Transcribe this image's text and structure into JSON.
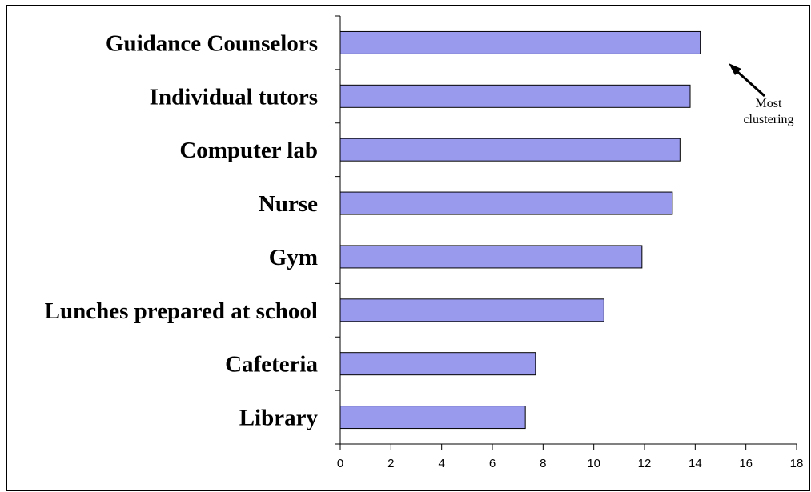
{
  "chart_data": {
    "type": "bar",
    "orientation": "horizontal",
    "categories": [
      "Guidance Counselors",
      "Individual tutors",
      "Computer lab",
      "Nurse",
      "Gym",
      "Lunches prepared at school",
      "Cafeteria",
      "Library"
    ],
    "values": [
      14.2,
      13.8,
      13.4,
      13.1,
      11.9,
      10.4,
      7.7,
      7.3
    ],
    "xlim": [
      0,
      18
    ],
    "xticks": [
      0,
      2,
      4,
      6,
      8,
      10,
      12,
      14,
      16,
      18
    ],
    "grid": false,
    "legend": "none",
    "bar_color": "#9999ee",
    "bar_stroke": "#000000",
    "annotation": {
      "line1": "Most",
      "line2": "clustering",
      "arrow": "up-left"
    }
  }
}
